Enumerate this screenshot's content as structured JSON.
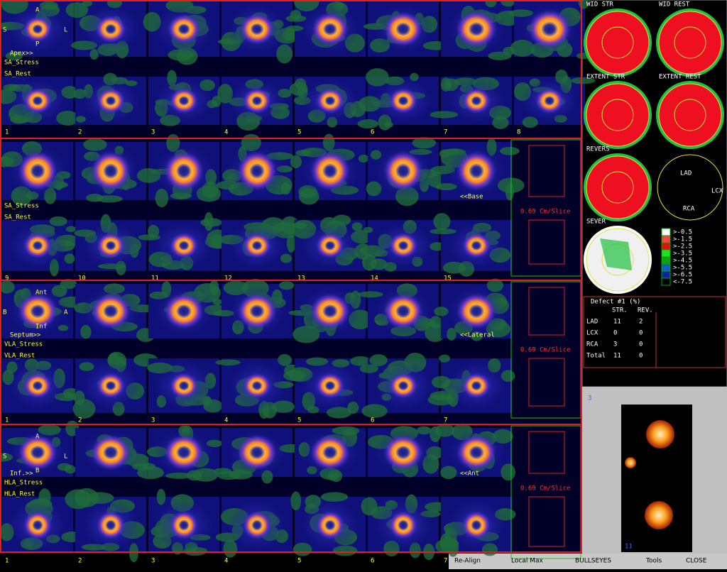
{
  "sections": [
    {
      "stress_label": "SA_Stress",
      "rest_label": "SA_Rest",
      "start_label": "Apex>>",
      "end_label": null,
      "scale_label": null,
      "orientation": [
        "A",
        "S",
        "L",
        "P"
      ],
      "slice_numbers": [
        "1",
        "2",
        "3",
        "4",
        "5",
        "6",
        "7",
        "8"
      ]
    },
    {
      "stress_label": "SA_Stress",
      "rest_label": "SA_Rest",
      "start_label": null,
      "end_label": "<<Base",
      "scale_label": "0.69 Cm/Slice",
      "orientation": [],
      "slice_numbers": [
        "9",
        "10",
        "11",
        "12",
        "13",
        "14",
        "15"
      ]
    },
    {
      "stress_label": "VLA_Stress",
      "rest_label": "VLA_Rest",
      "start_label": "Septum>>",
      "end_label": "<<Lateral",
      "scale_label": "0.69 Cm/Slice",
      "orientation": [
        "Ant",
        "B",
        "A",
        "Inf"
      ],
      "slice_numbers": [
        "1",
        "2",
        "3",
        "4",
        "5",
        "6",
        "7"
      ]
    },
    {
      "stress_label": "HLA_Stress",
      "rest_label": "HLA_Rest",
      "start_label": "Inf.>>",
      "end_label": "<<Ant",
      "scale_label": "0.69 Cm/Slice",
      "orientation": [
        "A",
        "S",
        "L",
        "B"
      ],
      "slice_numbers": [
        "1",
        "2",
        "3",
        "4",
        "5",
        "6",
        "7"
      ]
    }
  ],
  "bullseyes": [
    "WID STR",
    "WID REST",
    "EXTENT STR",
    "EXTENT REST",
    "REVERS",
    null,
    "SEVER"
  ],
  "territories": [
    "LAD",
    "LCX",
    "RCA"
  ],
  "severity_legend": [
    ">-0.5",
    ">-1.5",
    ">-2.5",
    ">-3.5",
    ">-4.5",
    ">-5.5",
    ">-6.5",
    "<-7.5"
  ],
  "defect_table": {
    "title": "Defect #1 (%)",
    "columns": [
      "STR.",
      "REV."
    ],
    "rows": [
      [
        "LAD",
        "11",
        "2"
      ],
      [
        "LCX",
        "0",
        "0"
      ],
      [
        "RCA",
        "3",
        "0"
      ],
      [
        "Total",
        "11",
        "0"
      ]
    ]
  },
  "preview": {
    "index": "3",
    "frame": "11"
  },
  "toolbar": [
    "Re-Align",
    "Local Max",
    "BULLSEYES",
    "Tools",
    "CLOSE"
  ]
}
